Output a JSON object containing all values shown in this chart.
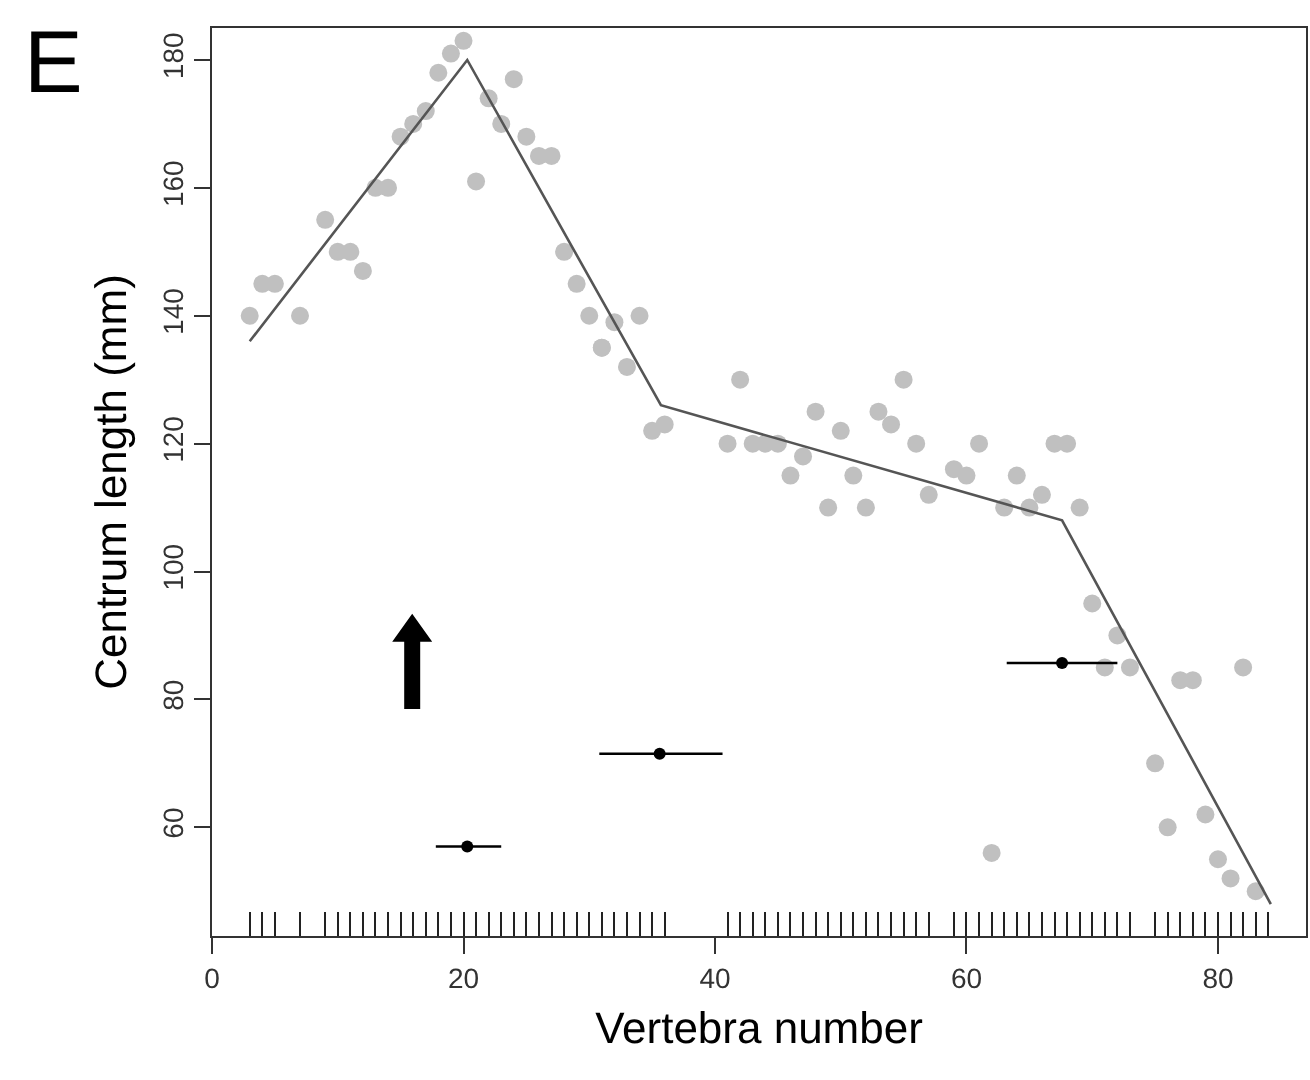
{
  "chart_data": {
    "type": "scatter",
    "xlabel": "Vertebra number",
    "ylabel": "Centrum length (mm)",
    "annotations": [
      "E"
    ],
    "xlim": [
      0,
      87
    ],
    "ylim": [
      43,
      185
    ],
    "xticks": [
      0,
      {
        "value": 3,
        "label": null
      },
      {
        "value": 4,
        "label": null
      },
      {
        "value": 5,
        "label": null
      },
      {
        "value": 7,
        "label": null
      },
      {
        "value": 9,
        "label": null
      },
      {
        "value": 10,
        "label": null
      },
      {
        "value": 11,
        "label": null
      },
      {
        "value": 12,
        "label": null
      },
      {
        "value": 13,
        "label": null
      },
      {
        "value": 14,
        "label": null
      },
      {
        "value": 15,
        "label": null
      },
      {
        "value": 16,
        "label": null
      },
      {
        "value": 17,
        "label": null
      },
      {
        "value": 18,
        "label": null
      },
      {
        "value": 19,
        "label": null
      },
      20,
      {
        "value": 20,
        "label": null
      },
      {
        "value": 21,
        "label": null
      },
      {
        "value": 22,
        "label": null
      },
      {
        "value": 23,
        "label": null
      },
      {
        "value": 24,
        "label": null
      },
      {
        "value": 25,
        "label": null
      },
      {
        "value": 26,
        "label": null
      },
      {
        "value": 27,
        "label": null
      },
      {
        "value": 28,
        "label": null
      },
      {
        "value": 29,
        "label": null
      },
      {
        "value": 30,
        "label": null
      },
      {
        "value": 31,
        "label": null
      },
      {
        "value": 32,
        "label": null
      },
      {
        "value": 33,
        "label": null
      },
      {
        "value": 34,
        "label": null
      },
      {
        "value": 35,
        "label": null
      },
      {
        "value": 36,
        "label": null
      },
      40,
      {
        "value": 41,
        "label": null
      },
      {
        "value": 42,
        "label": null
      },
      {
        "value": 43,
        "label": null
      },
      {
        "value": 44,
        "label": null
      },
      {
        "value": 45,
        "label": null
      },
      {
        "value": 46,
        "label": null
      },
      {
        "value": 47,
        "label": null
      },
      {
        "value": 48,
        "label": null
      },
      {
        "value": 49,
        "label": null
      },
      {
        "value": 50,
        "label": null
      },
      {
        "value": 51,
        "label": null
      },
      {
        "value": 52,
        "label": null
      },
      {
        "value": 53,
        "label": null
      },
      {
        "value": 54,
        "label": null
      },
      {
        "value": 55,
        "label": null
      },
      {
        "value": 56,
        "label": null
      },
      {
        "value": 57,
        "label": null
      },
      {
        "value": 59,
        "label": null
      },
      60,
      {
        "value": 60,
        "label": null
      },
      {
        "value": 61,
        "label": null
      },
      {
        "value": 62,
        "label": null
      },
      {
        "value": 63,
        "label": null
      },
      {
        "value": 64,
        "label": null
      },
      {
        "value": 65,
        "label": null
      },
      {
        "value": 66,
        "label": null
      },
      {
        "value": 67,
        "label": null
      },
      {
        "value": 68,
        "label": null
      },
      {
        "value": 69,
        "label": null
      },
      {
        "value": 70,
        "label": null
      },
      {
        "value": 71,
        "label": null
      },
      {
        "value": 72,
        "label": null
      },
      {
        "value": 73,
        "label": null
      },
      {
        "value": 75,
        "label": null
      },
      {
        "value": 76,
        "label": null
      },
      {
        "value": 77,
        "label": null
      },
      {
        "value": 78,
        "label": null
      },
      {
        "value": 79,
        "label": null
      },
      80,
      {
        "value": 80,
        "label": null
      },
      {
        "value": 81,
        "label": null
      },
      {
        "value": 82,
        "label": null
      },
      {
        "value": 83,
        "label": null
      },
      {
        "value": 84,
        "label": null
      }
    ],
    "yticks": [
      60,
      80,
      100,
      120,
      140,
      160,
      180
    ],
    "grid": false,
    "marker": "circle",
    "series": [
      {
        "color": "#c0c0c0",
        "x": [
          3,
          4,
          5,
          7,
          9,
          10,
          11,
          12,
          13,
          14,
          15,
          16,
          17,
          18,
          19,
          20,
          21,
          22,
          23,
          24,
          25,
          26,
          27,
          28,
          29,
          30,
          31,
          31,
          32,
          33,
          34,
          35,
          36,
          41,
          42,
          43,
          44,
          45,
          46,
          47,
          48,
          49,
          50,
          51,
          52,
          53,
          54,
          55,
          56,
          57,
          59,
          60,
          61,
          62,
          63,
          64,
          65,
          66,
          67,
          68,
          69,
          70,
          71,
          72,
          73,
          75,
          76,
          77,
          78,
          79,
          80,
          81,
          82,
          83
        ],
        "values": [
          140,
          145,
          145,
          140,
          155,
          150,
          150,
          147,
          160,
          160,
          168,
          170,
          172,
          178,
          181,
          183,
          161,
          174,
          170,
          177,
          168,
          165,
          165,
          150,
          145,
          140,
          135,
          135,
          139,
          132,
          140,
          122,
          123,
          120,
          130,
          120,
          120,
          120,
          115,
          118,
          125,
          110,
          122,
          115,
          110,
          125,
          123,
          130,
          120,
          112,
          116,
          115,
          120,
          56,
          110,
          115,
          110,
          112,
          120,
          120,
          110,
          95,
          85,
          90,
          85,
          70,
          60,
          83,
          83,
          62,
          55,
          52,
          85,
          50
        ]
      },
      {
        "type": "line",
        "color": "#555555",
        "marker": "none",
        "line_style": "solid",
        "x": [
          3,
          20.3,
          35.7,
          67.6,
          84.2
        ],
        "values": [
          136,
          180,
          126,
          108,
          48
        ]
      },
      {
        "type": "scatter",
        "color": "#000000",
        "x": [
          20.3,
          35.6,
          67.6
        ],
        "values": [
          57,
          71.5,
          85.7
        ],
        "xerrors": [
          [
            17.8,
            23
          ],
          [
            30.8,
            40.6
          ],
          [
            63.2,
            72
          ]
        ]
      }
    ]
  }
}
